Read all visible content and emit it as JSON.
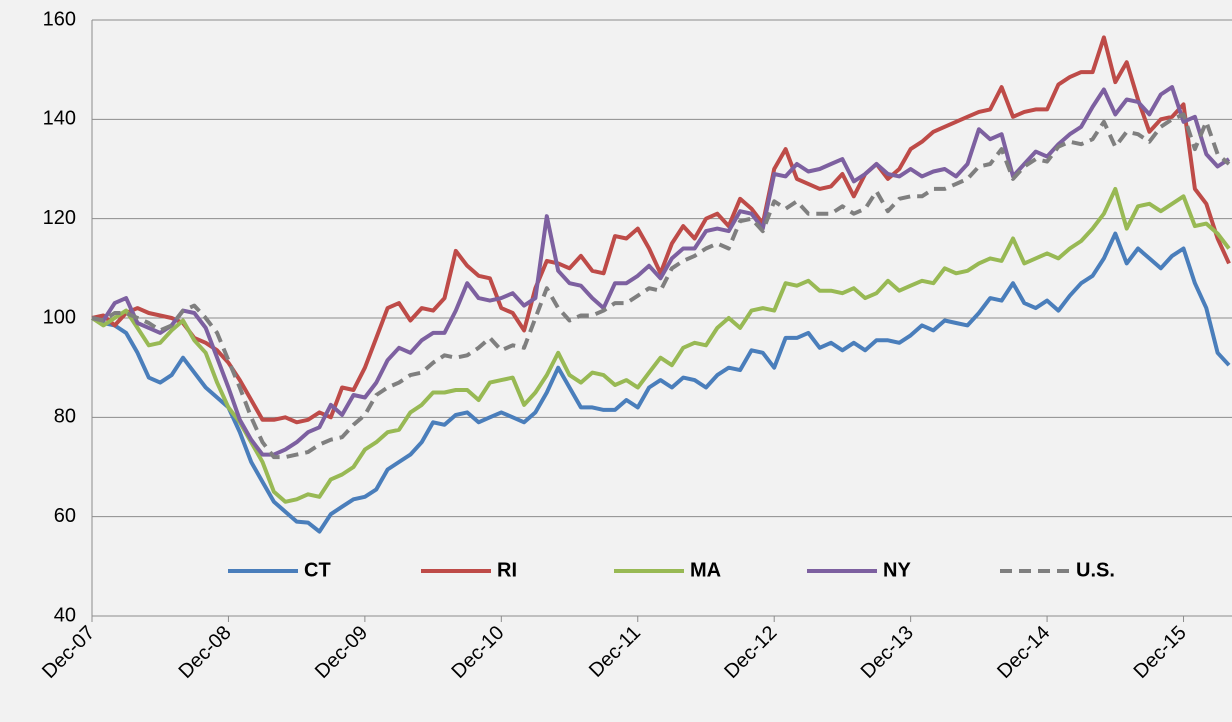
{
  "chart_data": {
    "type": "line",
    "categories": [
      "Dec-07",
      null,
      null,
      null,
      null,
      null,
      null,
      null,
      null,
      null,
      null,
      null,
      "Dec-08",
      null,
      null,
      null,
      null,
      null,
      null,
      null,
      null,
      null,
      null,
      null,
      "Dec-09",
      null,
      null,
      null,
      null,
      null,
      null,
      null,
      null,
      null,
      null,
      null,
      "Dec-10",
      null,
      null,
      null,
      null,
      null,
      null,
      null,
      null,
      null,
      null,
      null,
      "Dec-11",
      null,
      null,
      null,
      null,
      null,
      null,
      null,
      null,
      null,
      null,
      null,
      "Dec-12",
      null,
      null,
      null,
      null,
      null,
      null,
      null,
      null,
      null,
      null,
      null,
      "Dec-13",
      null,
      null,
      null,
      null,
      null,
      null,
      null,
      null,
      null,
      null,
      null,
      "Dec-14",
      null,
      null,
      null,
      null,
      null,
      null,
      null,
      null,
      null,
      null,
      null,
      "Dec-15",
      null,
      null,
      null,
      null
    ],
    "ylim": [
      40,
      160
    ],
    "yticks": [
      40,
      60,
      80,
      100,
      120,
      140,
      160
    ],
    "grid": true,
    "legend": "bottom",
    "series": [
      {
        "name": "CT",
        "color": "#4a7ebb",
        "values": [
          100,
          99,
          98.5,
          97,
          93,
          88,
          87,
          88.5,
          92,
          89,
          86,
          84,
          82,
          77,
          71,
          67,
          63,
          61,
          59,
          58.8,
          57,
          60.5,
          62,
          63.5,
          64,
          65.5,
          69.5,
          71,
          72.5,
          75,
          79,
          78.5,
          80.5,
          81,
          79,
          80,
          81,
          80,
          79,
          81,
          85,
          90,
          86,
          82,
          82,
          81.5,
          81.5,
          83.5,
          82,
          86,
          87.5,
          86,
          88,
          87.5,
          86,
          88.5,
          90,
          89.5,
          93.5,
          93,
          90,
          96,
          96,
          97,
          94,
          95,
          93.5,
          95,
          93.5,
          95.5,
          95.5,
          95,
          96.5,
          98.5,
          97.5,
          99.5,
          99,
          98.5,
          101,
          104,
          103.5,
          107,
          103,
          102,
          103.5,
          101.5,
          104.5,
          107,
          108.5,
          112,
          117,
          111,
          114,
          112,
          110,
          112.5,
          114,
          107,
          102,
          93,
          90.5
        ]
      },
      {
        "name": "RI",
        "color": "#be4b48",
        "values": [
          100,
          100.5,
          98.5,
          101,
          102,
          101,
          100.5,
          100,
          99,
          96,
          95,
          93.5,
          91,
          87.5,
          83.5,
          79.5,
          79.5,
          80,
          79,
          79.5,
          81,
          80,
          86,
          85.5,
          90,
          96,
          102,
          103,
          99.5,
          102,
          101.5,
          104,
          113.5,
          110.5,
          108.5,
          108,
          102,
          101,
          97.5,
          106,
          111.5,
          111,
          110,
          112.5,
          109.5,
          109,
          116.5,
          116,
          118,
          114,
          109,
          115,
          118.5,
          116,
          120,
          121,
          118.5,
          124,
          122,
          119,
          130,
          134,
          128,
          127,
          126,
          126.5,
          129,
          124.5,
          129,
          131,
          128,
          130,
          134,
          135.5,
          137.5,
          138.5,
          139.5,
          140.5,
          141.5,
          142,
          146.5,
          140.5,
          141.5,
          142,
          142,
          147,
          148.5,
          149.5,
          149.5,
          156.5,
          147.5,
          151.5,
          144,
          137.5,
          140,
          140.5,
          143,
          126,
          123,
          116,
          111
        ]
      },
      {
        "name": "MA",
        "color": "#98b954",
        "values": [
          100,
          98.5,
          100,
          101.5,
          98,
          94.5,
          95,
          97.5,
          99.5,
          95.5,
          93,
          87,
          82,
          79,
          75,
          71,
          65,
          63,
          63.5,
          64.5,
          64,
          67.5,
          68.5,
          70,
          73.5,
          75,
          77,
          77.5,
          81,
          82.5,
          85,
          85,
          85.5,
          85.5,
          83.5,
          87,
          87.5,
          88,
          82.5,
          85,
          88.5,
          93,
          88.5,
          87,
          89,
          88.5,
          86.5,
          87.5,
          86,
          89,
          92,
          90.5,
          94,
          95,
          94.5,
          98,
          100,
          98,
          101.5,
          102,
          101.5,
          107,
          106.5,
          107.5,
          105.5,
          105.5,
          105,
          106,
          104,
          105,
          107.5,
          105.5,
          106.5,
          107.5,
          107,
          110,
          109,
          109.5,
          111,
          112,
          111.5,
          116,
          111,
          112,
          113,
          112,
          114,
          115.5,
          118,
          121,
          126,
          118,
          122.5,
          123,
          121.5,
          123,
          124.5,
          118.5,
          119,
          117,
          114
        ]
      },
      {
        "name": "NY",
        "color": "#7d60a0",
        "values": [
          100,
          99.5,
          103,
          104,
          99,
          98,
          97,
          98.5,
          101.5,
          101,
          98,
          92,
          86,
          79.5,
          75.5,
          72.5,
          72.5,
          73.5,
          75,
          77,
          78,
          82.5,
          80.5,
          84.5,
          84,
          87,
          91.5,
          94,
          93,
          95.5,
          97,
          97,
          101.5,
          107,
          104,
          103.5,
          104,
          105,
          102.5,
          104,
          120.5,
          109.5,
          107,
          106.5,
          104,
          102,
          107,
          107,
          108.5,
          110.5,
          108,
          112,
          114,
          114,
          117.5,
          118,
          117.5,
          121.5,
          121,
          118,
          129,
          128.5,
          131,
          129.5,
          130,
          131,
          132,
          127.5,
          129,
          131,
          129,
          128.5,
          130,
          128.5,
          129.5,
          130,
          128.5,
          131,
          138,
          136,
          137,
          128.5,
          131,
          133.5,
          132.5,
          135,
          137,
          138.5,
          142.5,
          146,
          141,
          144,
          143.5,
          141,
          145,
          146.5,
          139.5,
          140.5,
          133,
          130.5,
          132
        ]
      },
      {
        "name": "U.S.",
        "color": "#7f7f7f",
        "style": "dashed",
        "values": [
          100,
          99.5,
          101,
          101,
          100,
          99,
          97.5,
          98.5,
          101.5,
          102.5,
          100,
          97,
          91.5,
          86,
          80,
          75,
          72,
          72,
          72.5,
          73,
          74.5,
          75.5,
          76,
          78.5,
          80.5,
          84.5,
          86,
          87,
          88.5,
          89,
          91,
          92.5,
          92,
          92.5,
          94,
          96,
          93.5,
          94.5,
          94,
          100,
          106,
          102,
          99.5,
          100.5,
          100.5,
          101.5,
          103,
          103,
          104.5,
          106,
          105.5,
          110,
          111.5,
          112.5,
          114,
          115,
          114,
          119.5,
          120,
          117.5,
          123.5,
          122,
          123.5,
          121,
          121,
          121,
          122.5,
          121,
          122,
          125.5,
          121.5,
          124,
          124.5,
          124.5,
          126,
          126,
          127,
          128,
          130.5,
          131,
          134,
          128,
          130.5,
          132,
          131.5,
          134.5,
          135.5,
          135,
          136,
          139.5,
          134.5,
          137.5,
          137,
          135.5,
          138.5,
          140,
          141,
          134,
          139.5,
          133,
          131
        ]
      }
    ]
  }
}
